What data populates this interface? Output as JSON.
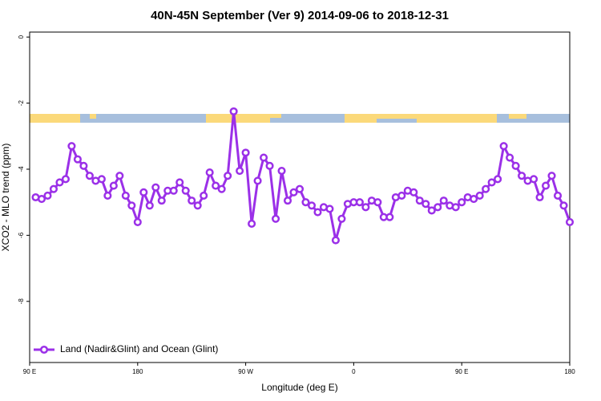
{
  "chart_data": {
    "type": "line",
    "title": "40N-45N September (Ver 9)   2014-09-06 to 2018-12-31",
    "x_label": "Longitude (deg E)",
    "y_label": "XCO2 - MLO trend (ppm)",
    "xlim": [
      90,
      540
    ],
    "xticks": [
      {
        "value": 90,
        "label": "90 E"
      },
      {
        "value": 180,
        "label": "180"
      },
      {
        "value": 270,
        "label": "90 W"
      },
      {
        "value": 360,
        "label": "0"
      },
      {
        "value": 450,
        "label": "90 E"
      },
      {
        "value": 540,
        "label": "180"
      }
    ],
    "ylim": [
      -9.85,
      0.15
    ],
    "yticks": [
      0,
      -2,
      -4,
      -6,
      -8
    ],
    "legend": "bottom-left",
    "x": [
      95,
      100,
      105,
      110,
      115,
      120,
      125,
      130,
      135,
      140,
      145,
      150,
      155,
      160,
      165,
      170,
      175,
      180,
      185,
      190,
      195,
      200,
      205,
      210,
      215,
      220,
      225,
      230,
      235,
      240,
      245,
      250,
      255,
      260,
      265,
      270,
      275,
      280,
      285,
      290,
      295,
      300,
      305,
      310,
      315,
      320,
      325,
      330,
      335,
      340,
      345,
      350,
      355,
      360,
      365,
      370,
      375,
      380,
      385,
      390,
      395,
      400,
      405,
      410,
      415,
      420,
      425,
      430,
      435,
      440,
      445,
      450,
      455,
      460,
      465,
      470,
      475,
      480,
      485,
      490,
      495,
      500,
      505,
      510,
      515,
      520,
      525,
      530,
      535,
      540
    ],
    "series": [
      {
        "name": "Land (Nadir&Glint) and Ocean (Glint)",
        "color": "#9b30e8",
        "values": [
          -4.85,
          -4.9,
          -4.8,
          -4.6,
          -4.4,
          -4.3,
          -3.3,
          -3.7,
          -3.9,
          -4.2,
          -4.35,
          -4.3,
          -4.8,
          -4.5,
          -4.2,
          -4.8,
          -5.1,
          -5.6,
          -4.7,
          -5.1,
          -4.55,
          -4.95,
          -4.65,
          -4.65,
          -4.4,
          -4.65,
          -4.95,
          -5.1,
          -4.8,
          -4.1,
          -4.5,
          -4.6,
          -4.2,
          -2.25,
          -4.05,
          -3.5,
          -5.65,
          -4.35,
          -3.65,
          -3.9,
          -5.5,
          -4.05,
          -4.95,
          -4.7,
          -4.6,
          -5.0,
          -5.1,
          -5.3,
          -5.15,
          -5.2,
          -6.15,
          -5.5,
          -5.05,
          -5.0,
          -5.0,
          -5.15,
          -4.95,
          -5.0,
          -5.45,
          -5.45,
          -4.85,
          -4.8,
          -4.65,
          -4.7,
          -4.95,
          -5.05,
          -5.25,
          -5.15,
          -4.95,
          -5.1,
          -5.15,
          -5.0,
          -4.85,
          -4.9,
          -4.8,
          -4.6,
          -4.4,
          -4.3,
          -3.3,
          -3.65,
          -3.9,
          -4.2,
          -4.35,
          -4.3,
          -4.85,
          -4.5,
          -4.2,
          -4.8,
          -5.1,
          -5.6
        ]
      }
    ]
  }
}
